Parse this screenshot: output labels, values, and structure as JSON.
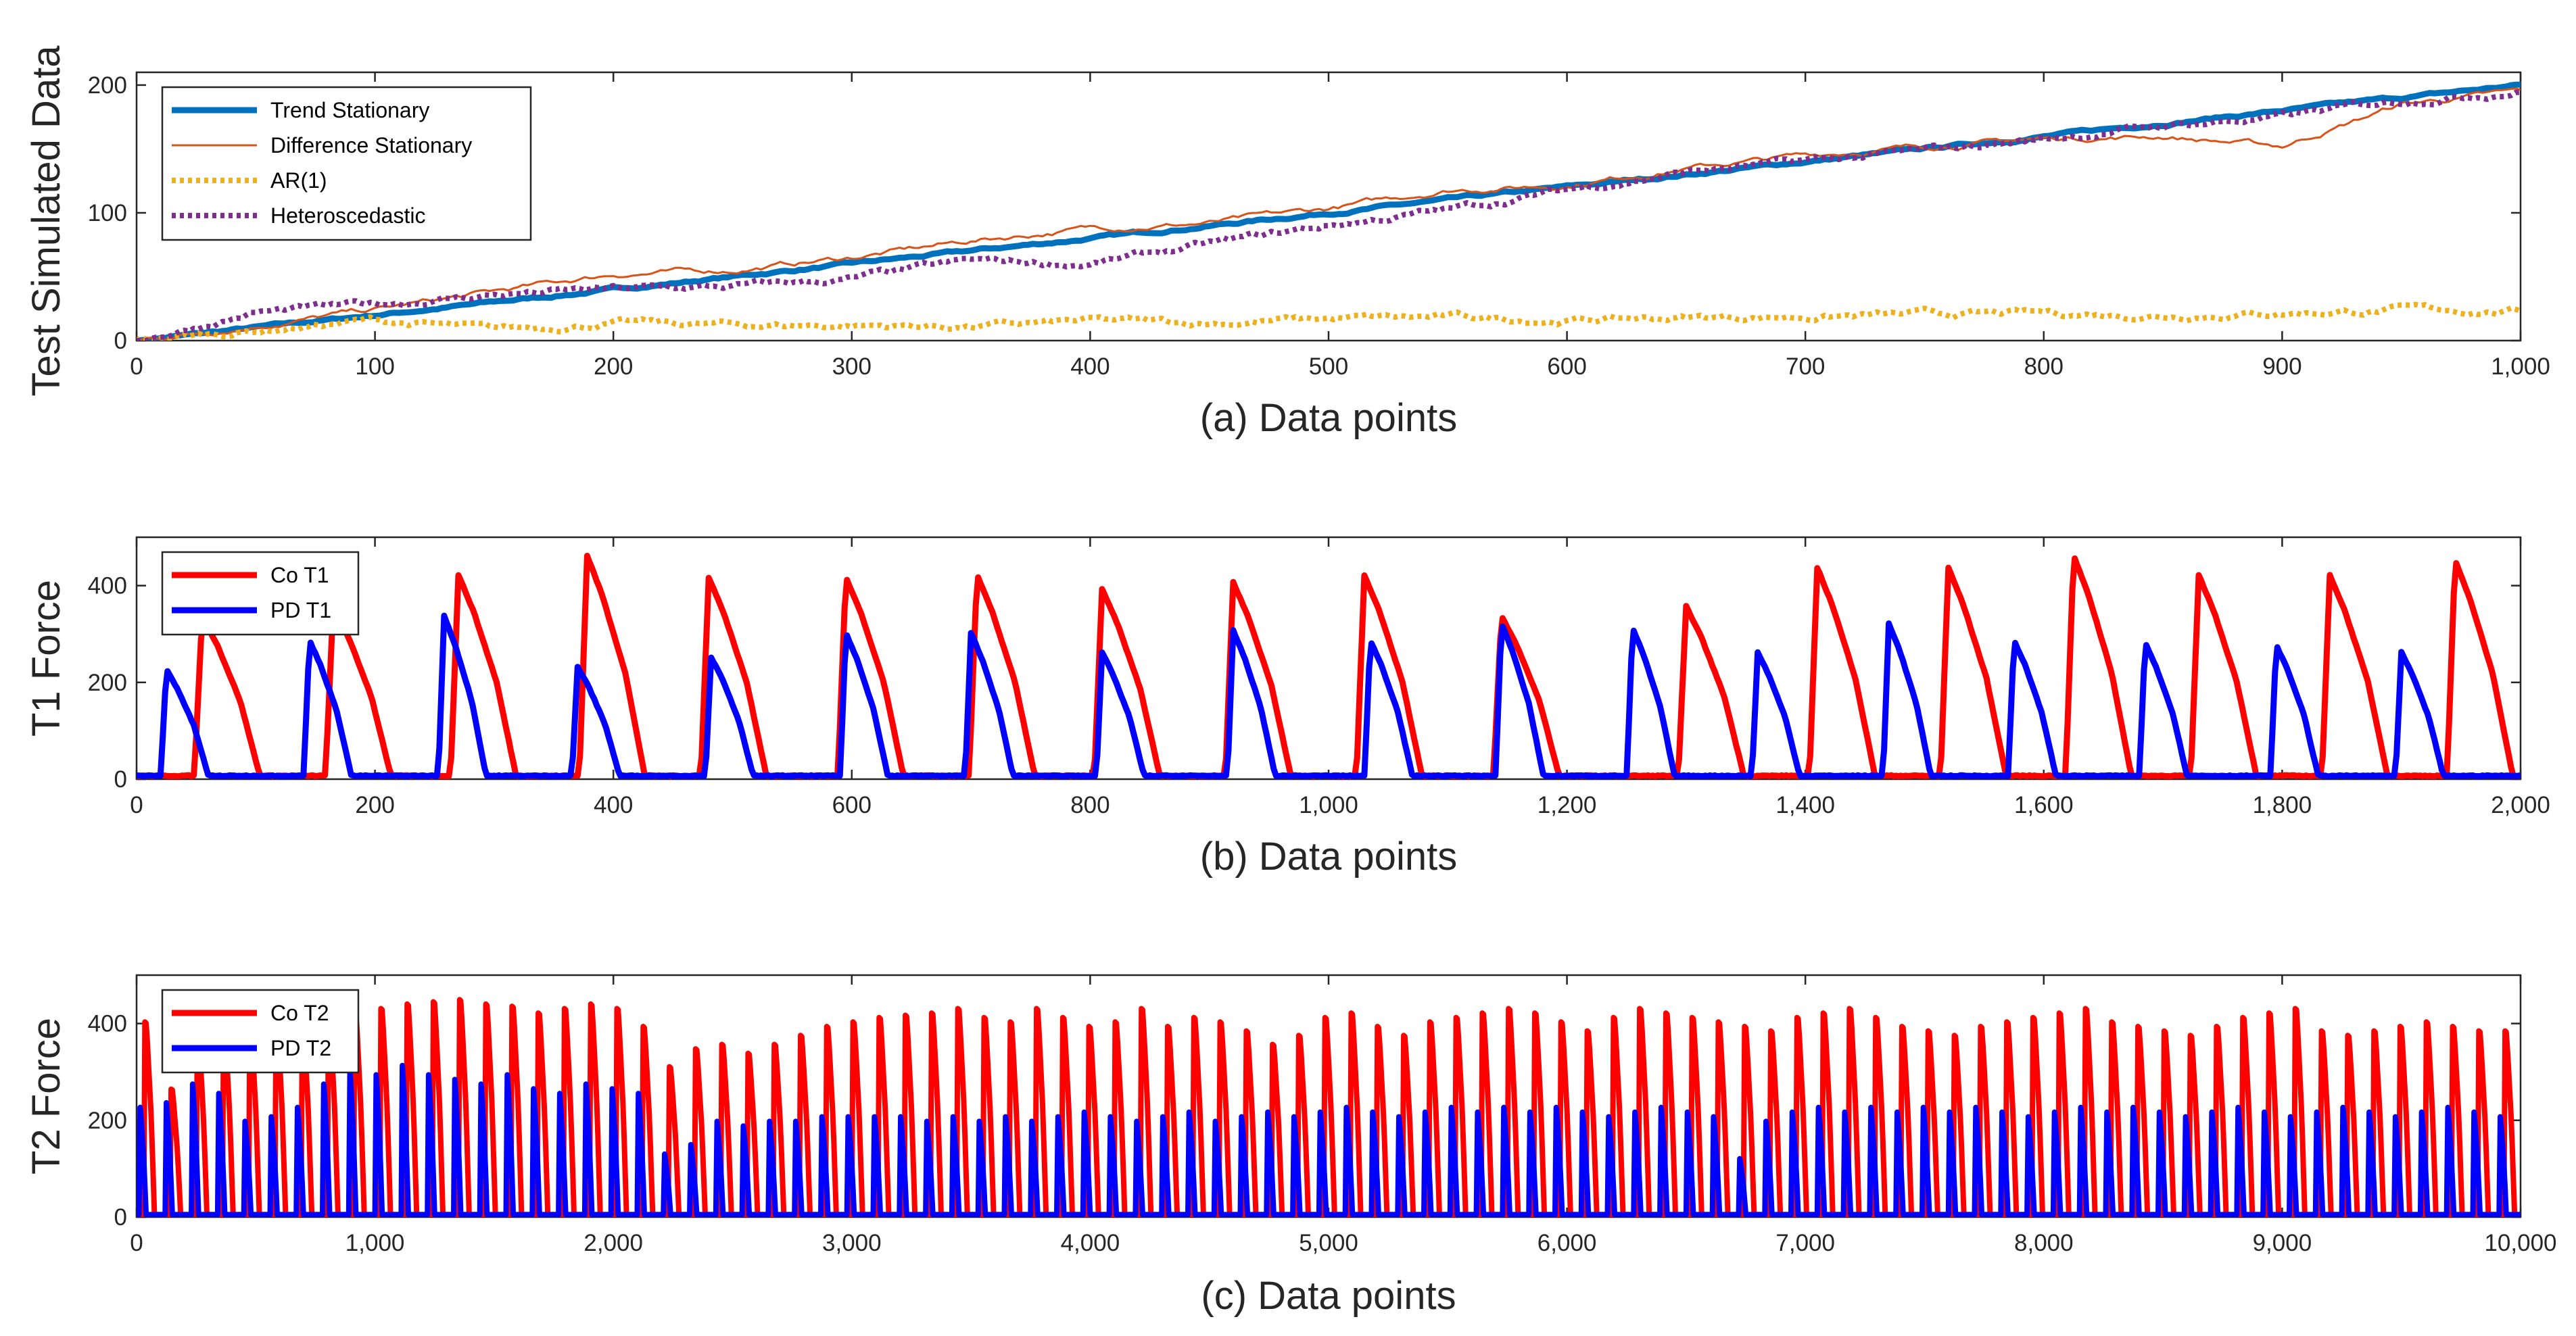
{
  "chart_data": [
    {
      "type": "line",
      "xlabel": "(a) Data points",
      "ylabel": "Test Simulated Data",
      "xlim": [
        0,
        1000
      ],
      "ylim": [
        0,
        210
      ],
      "xticks": [
        "0",
        "100",
        "200",
        "300",
        "400",
        "500",
        "600",
        "700",
        "800",
        "900",
        "1,000"
      ],
      "yticks": [
        "0",
        "100",
        "200"
      ],
      "legend_position": "top-left",
      "series": [
        {
          "name": "Trend Stationary",
          "color": "#0072BD",
          "style": "solid-thick",
          "x": [
            0,
            100,
            200,
            300,
            400,
            500,
            600,
            700,
            800,
            900,
            1000
          ],
          "y": [
            0,
            20,
            40,
            60,
            80,
            100,
            120,
            140,
            160,
            180,
            200
          ]
        },
        {
          "name": "Difference Stationary",
          "color": "#D95319",
          "style": "solid-thin",
          "x": [
            0,
            50,
            100,
            150,
            200,
            250,
            300,
            350,
            400,
            450,
            500,
            550,
            600,
            650,
            700,
            750,
            800,
            850,
            900,
            950,
            1000
          ],
          "y": [
            0,
            12,
            24,
            38,
            52,
            55,
            65,
            78,
            88,
            92,
            103,
            118,
            122,
            135,
            145,
            152,
            158,
            160,
            152,
            185,
            195
          ]
        },
        {
          "name": "AR(1)",
          "color": "#EDB120",
          "style": "dotted",
          "x": [
            0,
            50,
            100,
            150,
            200,
            250,
            300,
            350,
            400,
            450,
            500,
            550,
            600,
            650,
            700,
            750,
            800,
            850,
            900,
            950,
            1000
          ],
          "y": [
            0,
            8,
            16,
            8,
            14,
            12,
            12,
            11,
            15,
            14,
            17,
            18,
            16,
            18,
            19,
            20,
            21,
            20,
            22,
            24,
            23
          ]
        },
        {
          "name": "Heteroscedastic",
          "color": "#7E2F8E",
          "style": "dotted",
          "x": [
            0,
            50,
            100,
            150,
            200,
            250,
            300,
            350,
            400,
            450,
            500,
            550,
            600,
            650,
            700,
            750,
            800,
            850,
            900,
            950,
            1000
          ],
          "y": [
            0,
            22,
            28,
            36,
            40,
            42,
            48,
            62,
            60,
            75,
            90,
            102,
            118,
            132,
            140,
            148,
            158,
            168,
            175,
            188,
            196
          ]
        }
      ]
    },
    {
      "type": "line",
      "xlabel": "(b) Data points",
      "ylabel": "T1 Force",
      "xlim": [
        0,
        2000
      ],
      "ylim": [
        0,
        500
      ],
      "xticks": [
        "0",
        "200",
        "400",
        "600",
        "800",
        "1,000",
        "1,200",
        "1,400",
        "1,600",
        "1,800",
        "2,000"
      ],
      "yticks": [
        "0",
        "200",
        "400"
      ],
      "legend_position": "top-left",
      "series": [
        {
          "name": "Co T1",
          "color": "#FF0000",
          "pulse_width": 55,
          "peaks_x": [
            55,
            165,
            270,
            378,
            480,
            595,
            705,
            810,
            920,
            1030,
            1145,
            1300,
            1410,
            1520,
            1625,
            1730,
            1840,
            1945
          ],
          "peaks_y": [
            330,
            350,
            415,
            455,
            410,
            410,
            415,
            385,
            400,
            415,
            330,
            350,
            430,
            430,
            455,
            415,
            415,
            445
          ]
        },
        {
          "name": "PD T1",
          "color": "#0000FF",
          "pulse_width": 40,
          "peaks_x": [
            25,
            145,
            258,
            370,
            482,
            595,
            700,
            810,
            920,
            1035,
            1145,
            1255,
            1360,
            1470,
            1575,
            1685,
            1795,
            1900
          ],
          "peaks_y": [
            220,
            280,
            330,
            225,
            245,
            295,
            295,
            255,
            300,
            280,
            315,
            305,
            255,
            315,
            280,
            275,
            270,
            255
          ]
        }
      ]
    },
    {
      "type": "line",
      "xlabel": "(c) Data points",
      "ylabel": "T2 Force",
      "xlim": [
        0,
        10000
      ],
      "ylim": [
        0,
        500
      ],
      "xticks": [
        "0",
        "1,000",
        "2,000",
        "3,000",
        "4,000",
        "5,000",
        "6,000",
        "7,000",
        "8,000",
        "9,000",
        "10,000"
      ],
      "yticks": [
        "0",
        "200",
        "400"
      ],
      "legend_position": "top-left",
      "series": [
        {
          "name": "Co T2",
          "color": "#FF0000",
          "pulse_period": 110,
          "pulse_width": 45,
          "peaks_y": [
            430,
            280,
            410,
            420,
            430,
            440,
            430,
            450,
            455,
            460,
            470,
            475,
            480,
            470,
            465,
            450,
            460,
            470,
            460,
            420,
            330,
            370,
            380,
            360,
            380,
            400,
            420,
            430,
            440,
            445,
            450,
            460,
            440,
            430,
            460,
            440,
            420,
            430,
            460,
            420,
            440,
            430,
            410,
            380,
            400,
            440,
            450,
            420,
            400,
            430,
            440,
            450,
            460,
            450,
            430,
            410,
            440,
            460,
            450,
            440,
            430,
            420,
            410,
            440,
            450,
            460,
            440,
            420,
            410,
            400,
            420,
            430,
            440,
            450,
            460,
            430,
            420,
            410,
            400,
            420,
            440,
            450,
            460,
            410,
            400,
            410,
            420,
            430,
            420,
            410,
            410
          ]
        },
        {
          "name": "PD T2",
          "color": "#0000FF",
          "pulse_period": 110,
          "pulse_width": 30,
          "peaks_y": [
            230,
            240,
            280,
            260,
            200,
            210,
            230,
            280,
            310,
            300,
            320,
            300,
            290,
            280,
            300,
            270,
            260,
            280,
            270,
            260,
            130,
            150,
            200,
            190,
            200,
            200,
            210,
            210,
            210,
            210,
            200,
            210,
            200,
            210,
            200,
            210,
            220,
            210,
            200,
            210,
            220,
            200,
            210,
            220,
            210,
            220,
            230,
            220,
            210,
            220,
            230,
            220,
            230,
            220,
            230,
            220,
            210,
            220,
            230,
            220,
            210,
            120,
            200,
            220,
            230,
            220,
            230,
            220,
            230,
            220,
            230,
            220,
            210,
            220,
            230,
            220,
            230,
            220,
            210,
            220,
            230,
            220,
            210,
            220,
            230,
            220,
            210,
            220,
            230,
            220,
            210
          ]
        }
      ]
    }
  ]
}
